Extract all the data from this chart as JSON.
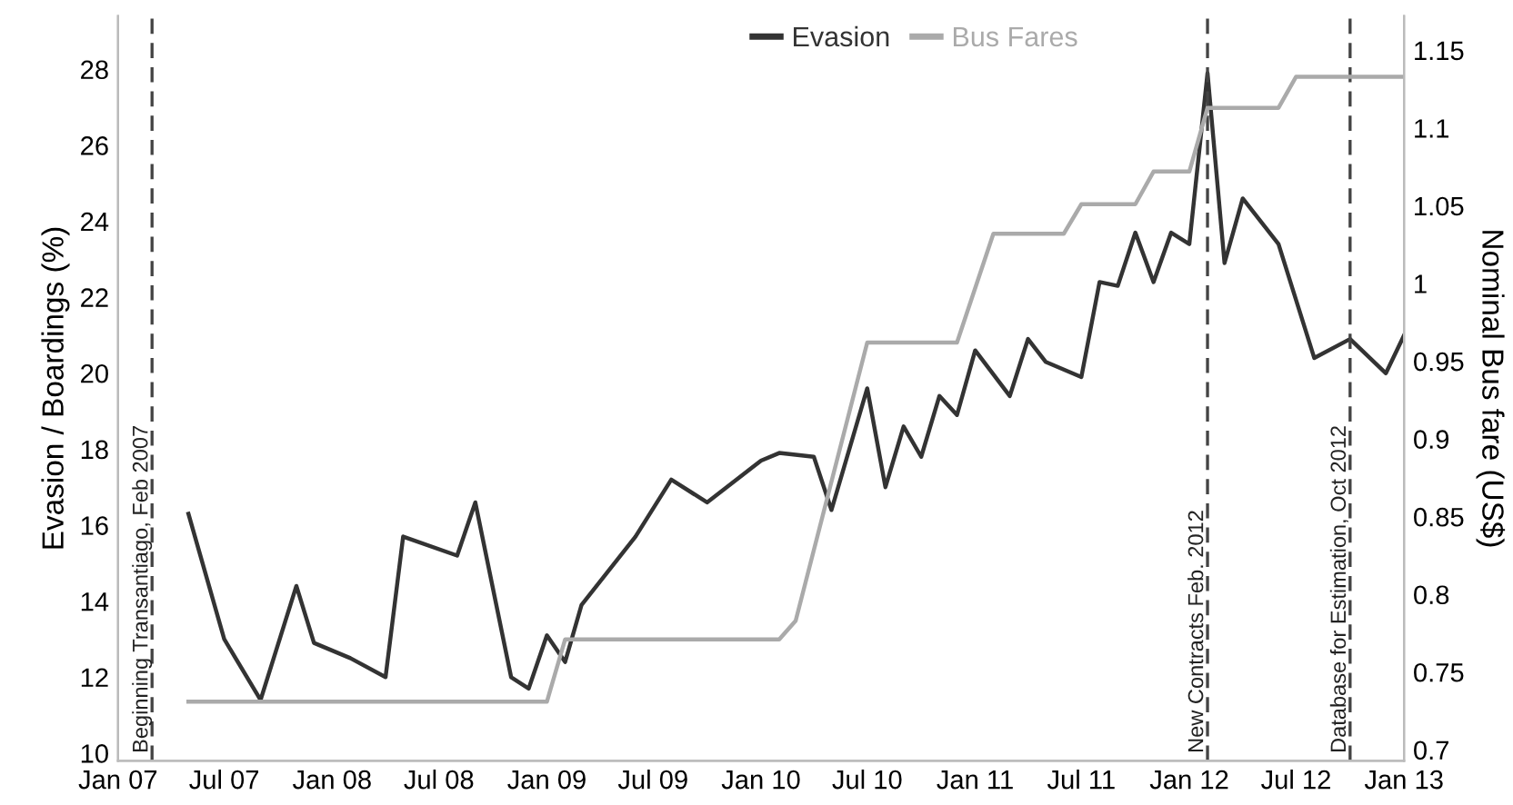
{
  "chart_data": {
    "type": "line",
    "ylabel": "Evasion / Boardings (%)",
    "y2label": "Nominal Bus fare (US$)",
    "xlim": [
      "2007-01",
      "2013-01"
    ],
    "xticks": [
      {
        "value": "2007-01",
        "label": "Jan 07"
      },
      {
        "value": "2007-07",
        "label": "Jul 07"
      },
      {
        "value": "2008-01",
        "label": "Jan 08"
      },
      {
        "value": "2008-07",
        "label": "Jul 08"
      },
      {
        "value": "2009-01",
        "label": "Jan 09"
      },
      {
        "value": "2009-07",
        "label": "Jul 09"
      },
      {
        "value": "2010-01",
        "label": "Jan 10"
      },
      {
        "value": "2010-07",
        "label": "Jul 10"
      },
      {
        "value": "2011-01",
        "label": "Jan 11"
      },
      {
        "value": "2011-07",
        "label": "Jul 11"
      },
      {
        "value": "2012-01",
        "label": "Jan 12"
      },
      {
        "value": "2012-07",
        "label": "Jul 12"
      },
      {
        "value": "2013-01",
        "label": "Jan 13"
      }
    ],
    "ylim": [
      9.8,
      29.4
    ],
    "yticks": [
      10,
      12,
      14,
      16,
      18,
      20,
      22,
      24,
      26,
      28
    ],
    "y2lim": [
      0.693,
      1.172
    ],
    "y2ticks": [
      0.7,
      0.75,
      0.8,
      0.85,
      0.9,
      0.95,
      1,
      1.05,
      1.1,
      1.15
    ],
    "grid": false,
    "legend": "top",
    "series": [
      {
        "name": "Evasion",
        "color": "#333333",
        "x": [
          "2007-05",
          "2007-07",
          "2007-09",
          "2007-11",
          "2007-12",
          "2008-02",
          "2008-04",
          "2008-05",
          "2008-08",
          "2008-09",
          "2008-11",
          "2008-12",
          "2009-01",
          "2009-02",
          "2009-03",
          "2009-06",
          "2009-08",
          "2009-10",
          "2010-01",
          "2010-02",
          "2010-04",
          "2010-05",
          "2010-07",
          "2010-08",
          "2010-09",
          "2010-10",
          "2010-11",
          "2010-12",
          "2011-01",
          "2011-03",
          "2011-04",
          "2011-05",
          "2011-07",
          "2011-08",
          "2011-09",
          "2011-10",
          "2011-11",
          "2011-12",
          "2012-01",
          "2012-02",
          "2012-03",
          "2012-04",
          "2012-06",
          "2012-08",
          "2012-10",
          "2012-12",
          "2013-01"
        ],
        "values": [
          16.3,
          13.0,
          11.4,
          14.4,
          12.9,
          12.5,
          12.0,
          15.7,
          15.2,
          16.6,
          12.0,
          11.7,
          13.1,
          12.4,
          13.9,
          15.7,
          17.2,
          16.6,
          17.7,
          17.9,
          17.8,
          16.4,
          19.6,
          17.0,
          18.6,
          17.8,
          19.4,
          18.9,
          20.6,
          19.4,
          20.9,
          20.3,
          19.9,
          22.4,
          22.3,
          23.7,
          22.4,
          23.7,
          23.4,
          27.9,
          22.9,
          24.6,
          23.4,
          20.4,
          20.9,
          20.0,
          21.0
        ]
      },
      {
        "name": "Bus Fares",
        "color": "#aaaaaa",
        "axis": "y2",
        "x": [
          "2007-05",
          "2009-01",
          "2009-02",
          "2010-02",
          "2010-03",
          "2010-07",
          "2010-12",
          "2011-02",
          "2011-06",
          "2011-07",
          "2011-10",
          "2011-11",
          "2012-01",
          "2012-02",
          "2012-06",
          "2012-07",
          "2013-01"
        ],
        "values": [
          0.731,
          0.731,
          0.771,
          0.771,
          0.783,
          0.962,
          0.962,
          1.032,
          1.032,
          1.051,
          1.051,
          1.072,
          1.072,
          1.113,
          1.113,
          1.133,
          1.133
        ]
      }
    ],
    "ref_lines": [
      {
        "axis": "x",
        "value": "2007-02-28",
        "label": "Beginning Transantiago, Feb 2007",
        "line_style": "dashed",
        "color": "#444444"
      },
      {
        "axis": "x",
        "value": "2012-02",
        "label": "New Contracts Feb. 2012",
        "line_style": "dashed",
        "color": "#444444"
      },
      {
        "axis": "x",
        "value": "2012-10",
        "label": "Database for Estimation, Oct 2012",
        "line_style": "dashed",
        "color": "#444444"
      }
    ]
  }
}
